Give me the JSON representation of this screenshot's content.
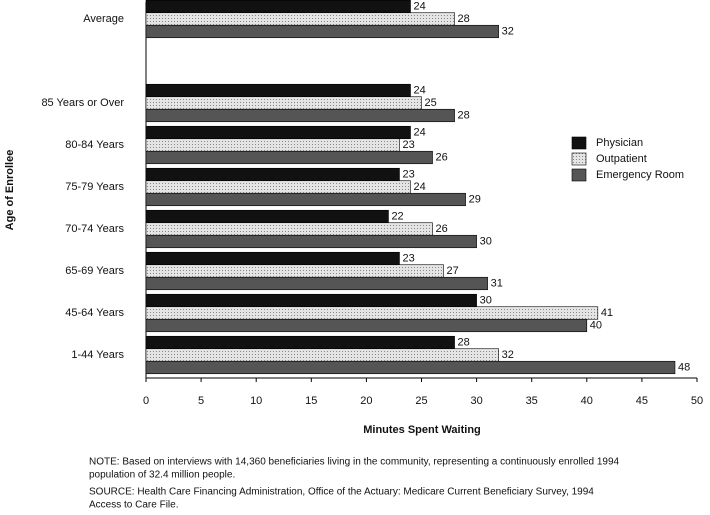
{
  "chart_data": {
    "type": "bar",
    "orientation": "horizontal",
    "x_label": "Minutes Spent Waiting",
    "y_label": "Age of Enrollee",
    "categories": [
      "Average",
      null,
      "85 Years or Over",
      "80-84 Years",
      "75-79 Years",
      "70-74 Years",
      "65-69 Years",
      "45-64 Years",
      "1-44 Years"
    ],
    "series": [
      {
        "name": "Physician",
        "color": "#111111",
        "values": [
          24,
          null,
          24,
          24,
          23,
          22,
          23,
          30,
          28
        ]
      },
      {
        "name": "Outpatient",
        "color": "#d9d9d9",
        "values": [
          28,
          null,
          25,
          23,
          24,
          26,
          27,
          41,
          32
        ]
      },
      {
        "name": "Emergency Room",
        "color": "#555555",
        "values": [
          32,
          null,
          28,
          26,
          29,
          30,
          31,
          40,
          48
        ]
      }
    ],
    "xlim": [
      0,
      50
    ],
    "xticks": [
      0,
      5,
      10,
      15,
      20,
      25,
      30,
      35,
      40,
      45,
      50
    ],
    "legend": "right",
    "note": [
      "NOTE: Based on interviews with 14,360 beneficiaries living in the community, representing a continuously enrolled 1994",
      "population of 32.4 million people."
    ],
    "source": [
      "SOURCE: Health Care Financing Administration, Office of the Actuary: Medicare Current Beneficiary Survey, 1994",
      "Access to Care File."
    ]
  }
}
